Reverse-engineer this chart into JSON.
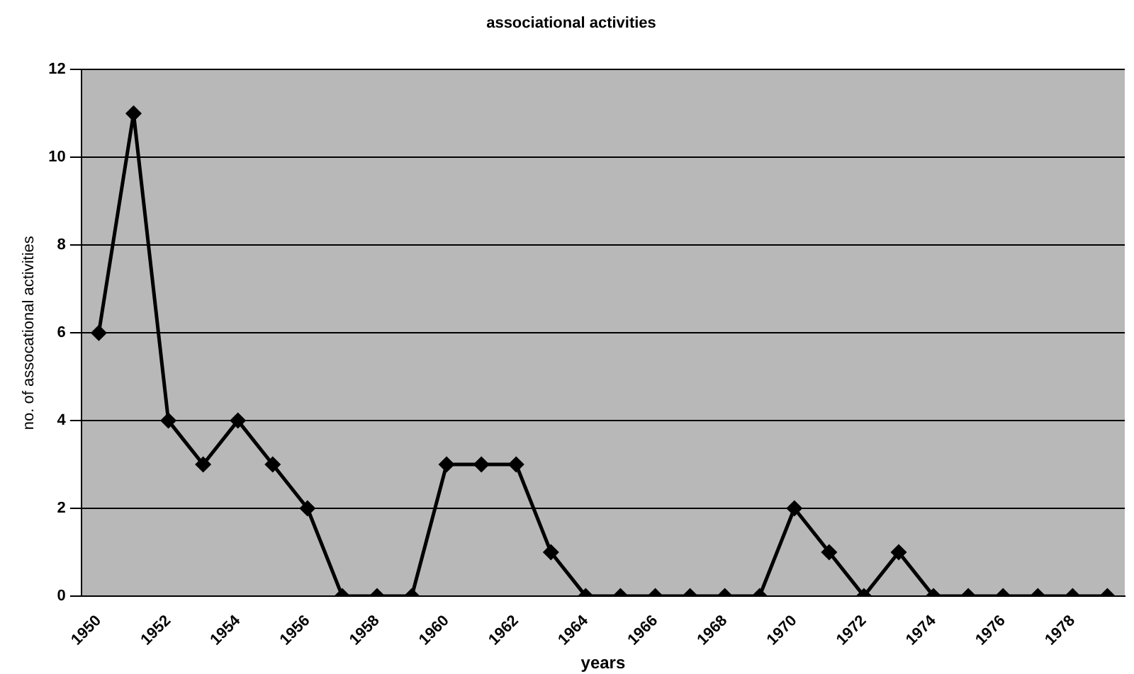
{
  "chart_data": {
    "type": "line",
    "title": "associational activities",
    "xlabel": "years",
    "ylabel": "no. of assocational activities",
    "categories": [
      "1950",
      null,
      "1952",
      null,
      "1954",
      null,
      "1956",
      null,
      "1958",
      null,
      "1960",
      null,
      "1962",
      null,
      "1964",
      null,
      "1966",
      null,
      "1968",
      null,
      "1970",
      null,
      "1972",
      null,
      "1974",
      null,
      "1976",
      null,
      "1978",
      null
    ],
    "series": [
      {
        "color": "#000000",
        "values": [
          6,
          11,
          4,
          3,
          4,
          3,
          2,
          0,
          0,
          0,
          3,
          3,
          3,
          1,
          0,
          0,
          0,
          0,
          0,
          0,
          2,
          1,
          0,
          1,
          0,
          0,
          0,
          0,
          0,
          0
        ]
      }
    ],
    "ylim": [
      0,
      12
    ],
    "yticks": [
      0,
      2,
      4,
      6,
      8,
      10,
      12
    ],
    "grid": "y",
    "legend": false,
    "marker": "diamond",
    "line_style": "solid"
  }
}
